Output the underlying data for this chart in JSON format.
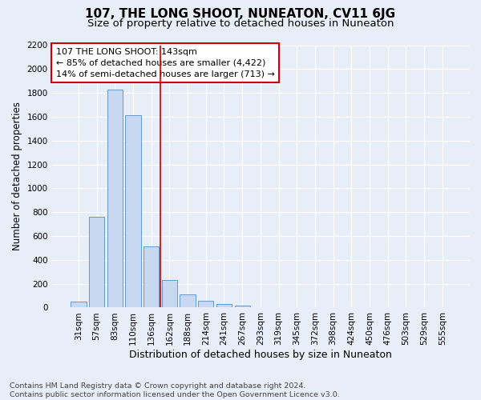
{
  "title": "107, THE LONG SHOOT, NUNEATON, CV11 6JG",
  "subtitle": "Size of property relative to detached houses in Nuneaton",
  "xlabel": "Distribution of detached houses by size in Nuneaton",
  "ylabel": "Number of detached properties",
  "footnote": "Contains HM Land Registry data © Crown copyright and database right 2024.\nContains public sector information licensed under the Open Government Licence v3.0.",
  "bar_color": "#c8d8f0",
  "bar_edge_color": "#6699cc",
  "categories": [
    "31sqm",
    "57sqm",
    "83sqm",
    "110sqm",
    "136sqm",
    "162sqm",
    "188sqm",
    "214sqm",
    "241sqm",
    "267sqm",
    "293sqm",
    "319sqm",
    "345sqm",
    "372sqm",
    "398sqm",
    "424sqm",
    "450sqm",
    "476sqm",
    "503sqm",
    "529sqm",
    "555sqm"
  ],
  "values": [
    50,
    760,
    1830,
    1610,
    510,
    230,
    110,
    55,
    30,
    15,
    5,
    0,
    0,
    0,
    0,
    0,
    0,
    0,
    0,
    0,
    0
  ],
  "vline_x": 4.5,
  "vline_color": "#cc0000",
  "annotation_text": "107 THE LONG SHOOT: 143sqm\n← 85% of detached houses are smaller (4,422)\n14% of semi-detached houses are larger (713) →",
  "annotation_box_facecolor": "#ffffff",
  "annotation_box_edgecolor": "#cc0000",
  "ylim": [
    0,
    2200
  ],
  "yticks": [
    0,
    200,
    400,
    600,
    800,
    1000,
    1200,
    1400,
    1600,
    1800,
    2000,
    2200
  ],
  "bg_color": "#e8eef8",
  "grid_color": "#ffffff",
  "title_fontsize": 11,
  "subtitle_fontsize": 9.5,
  "ylabel_fontsize": 8.5,
  "xlabel_fontsize": 9,
  "tick_fontsize": 7.5,
  "annot_fontsize": 8,
  "footnote_fontsize": 6.8
}
